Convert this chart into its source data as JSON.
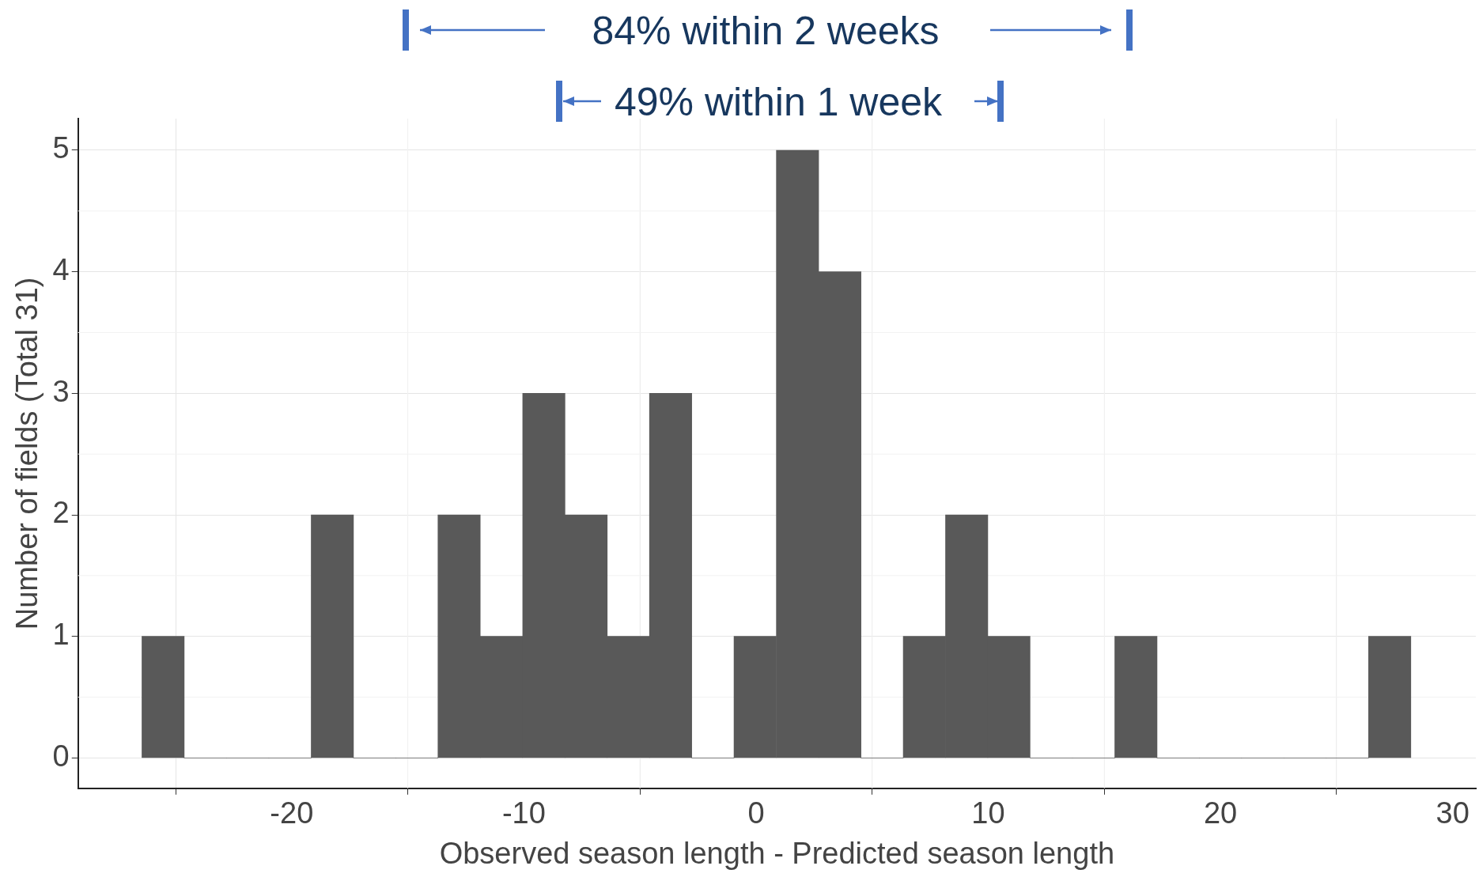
{
  "chart_data": {
    "type": "histogram",
    "bins": [
      -26.45,
      -24.63,
      -22.81,
      -20.98,
      -19.16,
      -17.34,
      -15.52,
      -13.7,
      -11.88,
      -10.05,
      -8.23,
      -6.41,
      -4.59,
      -2.77,
      -0.95,
      0.87,
      2.7,
      4.52,
      6.34,
      8.16,
      9.98,
      11.8,
      13.63,
      15.45,
      17.27,
      19.09,
      20.91,
      22.73,
      24.56,
      26.38,
      28.2
    ],
    "values": [
      1,
      0,
      0,
      0,
      2,
      0,
      0,
      2,
      1,
      3,
      2,
      1,
      3,
      0,
      1,
      5,
      4,
      0,
      1,
      2,
      1,
      0,
      0,
      1,
      0,
      0,
      0,
      0,
      0,
      1
    ],
    "color": "#595959",
    "xlabel": "Observed season length - Predicted season length",
    "ylabel": "Number of fields (Total 31)",
    "xlim": [
      -29.2,
      31
    ],
    "xticks": [
      -20,
      -10,
      0,
      10,
      20,
      30
    ],
    "ylim": [
      -0.25,
      5.26
    ],
    "yticks": [
      0,
      1,
      2,
      3,
      4,
      5
    ],
    "grid": true,
    "annotations": [
      "84% within 2 weeks",
      "49% within 1 week"
    ]
  }
}
